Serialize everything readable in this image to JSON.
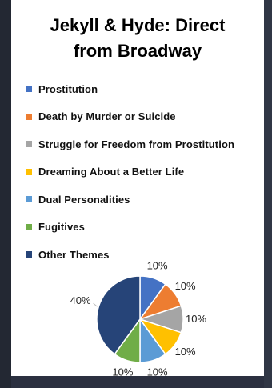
{
  "chart_data": {
    "type": "pie",
    "title": "Jekyll & Hyde: Direct from Broadway",
    "title_lines": [
      "Jekyll & Hyde: Direct",
      "from Broadway"
    ],
    "categories": [
      "Prostitution",
      "Death by Murder or Suicide",
      "Struggle for Freedom from Prostitution",
      "Dreaming About a Better Life",
      "Dual Personalities",
      "Fugitives",
      "Other Themes"
    ],
    "values": [
      10,
      10,
      10,
      10,
      10,
      10,
      40
    ],
    "data_labels": [
      "10%",
      "10%",
      "10%",
      "10%",
      "10%",
      "10%",
      "40%"
    ],
    "colors": [
      "#4472c4",
      "#ed7d31",
      "#a5a5a5",
      "#ffc000",
      "#5b9bd5",
      "#70ad47",
      "#264478"
    ],
    "legend_position": "top"
  }
}
